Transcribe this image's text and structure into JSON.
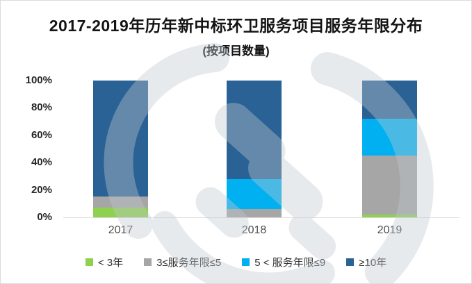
{
  "chart_data": {
    "type": "bar",
    "variant": "stacked-100-percent",
    "title": "2017-2019年历年新中标环卫服务项目服务年限分布",
    "subtitle": "(按项目数量)",
    "categories": [
      "2017",
      "2018",
      "2019"
    ],
    "series": [
      {
        "name": "< 3年",
        "color": "#8FD14F",
        "values": [
          7,
          0,
          2
        ]
      },
      {
        "name": "3≤服务年限≤5",
        "color": "#A6A6A6",
        "values": [
          8,
          6,
          43
        ]
      },
      {
        "name": "5 < 服务年限≤9",
        "color": "#00B0F0",
        "values": [
          0,
          22,
          27
        ]
      },
      {
        "name": "≥10年",
        "color": "#2A6295",
        "values": [
          85,
          72,
          28
        ]
      }
    ],
    "y_axis": {
      "ticks": [
        0,
        20,
        40,
        60,
        80,
        100
      ],
      "tick_suffix": "%",
      "min": 0,
      "max": 100
    },
    "xlabel": "",
    "ylabel": "",
    "grid": "baseline-only",
    "legend_position": "bottom"
  },
  "watermark": {
    "name": "swoosh-logo",
    "color": "#C2C9D0",
    "opacity": 0.38
  },
  "colors": {
    "background": "#FFFFFF",
    "card_border": "#DBDBDB",
    "baseline": "#DEDEDE",
    "title_text": "#141414",
    "axis_tick_text": "#262626",
    "category_text": "#4D4D4D",
    "legend_text": "#333333"
  }
}
